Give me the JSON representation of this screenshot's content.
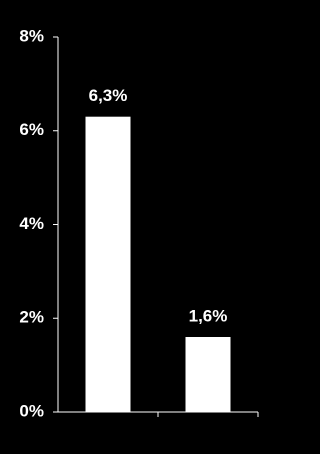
{
  "chart_data": {
    "type": "bar",
    "categories": [
      null,
      null
    ],
    "values": [
      6.3,
      1.6
    ],
    "value_labels": [
      "6,3%",
      "1,6%"
    ],
    "color": "#ffffff",
    "ylim": [
      0,
      8
    ],
    "yticks": [
      {
        "value": 0,
        "label": "0%"
      },
      {
        "value": 2,
        "label": "2%"
      },
      {
        "value": 4,
        "label": "4%"
      },
      {
        "value": 6,
        "label": "6%"
      },
      {
        "value": 8,
        "label": "8%"
      }
    ],
    "grid": false
  }
}
